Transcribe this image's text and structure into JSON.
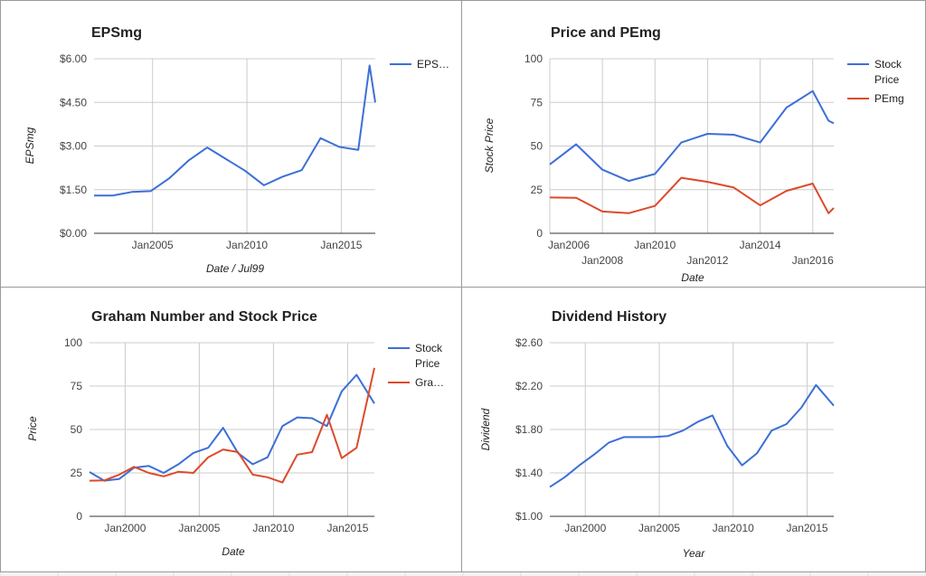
{
  "colors": {
    "blue": "#3d6fd6",
    "red": "#dc4a2c",
    "grid": "#cccccc",
    "axis": "#333333"
  },
  "chart_data": [
    {
      "type": "line",
      "title": "EPSmg",
      "xlabel": "Date / Jul99",
      "ylabel": "EPSmg",
      "ylim": [
        0,
        6
      ],
      "xlim": [
        2001.9,
        2016.8
      ],
      "yticks": [
        0,
        1.5,
        3,
        4.5,
        6
      ],
      "ytick_labels": [
        "$0.00",
        "$1.50",
        "$3.00",
        "$4.50",
        "$6.00"
      ],
      "xticks": [
        2005,
        2010,
        2015
      ],
      "xtick_labels": [
        "Jan2005",
        "Jan2010",
        "Jan2015"
      ],
      "legend": "right",
      "legend_labels": [
        "EPS…"
      ],
      "series": [
        {
          "name": "EPS…",
          "color": "blue",
          "points": [
            [
              2001.9,
              1.3
            ],
            [
              2002.9,
              1.3
            ],
            [
              2003.9,
              1.42
            ],
            [
              2004.9,
              1.45
            ],
            [
              2005.9,
              1.9
            ],
            [
              2006.9,
              2.5
            ],
            [
              2007.9,
              2.95
            ],
            [
              2008.9,
              2.55
            ],
            [
              2009.9,
              2.15
            ],
            [
              2010.9,
              1.65
            ],
            [
              2011.9,
              1.95
            ],
            [
              2012.9,
              2.17
            ],
            [
              2013.9,
              3.27
            ],
            [
              2014.9,
              2.97
            ],
            [
              2015.9,
              2.87
            ],
            [
              2016.5,
              5.77
            ],
            [
              2016.8,
              4.5
            ]
          ]
        }
      ]
    },
    {
      "type": "line",
      "title": "Price and PEmg",
      "xlabel": "Date",
      "ylabel": "Stock Price",
      "ylim": [
        0,
        100
      ],
      "xlim": [
        2006,
        2016.8
      ],
      "yticks": [
        0,
        25,
        50,
        75,
        100
      ],
      "ytick_labels": [
        "0",
        "25",
        "50",
        "75",
        "100"
      ],
      "xticks": [
        2006,
        2008,
        2010,
        2012,
        2014,
        2016
      ],
      "xtick_labels": [
        "Jan2006",
        "Jan2008",
        "Jan2010",
        "Jan2012",
        "Jan2014",
        "Jan2016"
      ],
      "xtick_staggered": true,
      "legend": "right",
      "legend_labels": [
        "Stock",
        "Price",
        "PEmg"
      ],
      "series": [
        {
          "name": "Stock Price",
          "color": "blue",
          "points": [
            [
              2006,
              39.5
            ],
            [
              2007,
              51
            ],
            [
              2008,
              36.5
            ],
            [
              2009,
              30
            ],
            [
              2010,
              34
            ],
            [
              2011,
              52
            ],
            [
              2012,
              57
            ],
            [
              2013,
              56.5
            ],
            [
              2014,
              52
            ],
            [
              2015,
              72
            ],
            [
              2016,
              81.5
            ],
            [
              2016.6,
              64.5
            ],
            [
              2016.8,
              63
            ]
          ]
        },
        {
          "name": "PEmg",
          "color": "red",
          "points": [
            [
              2006,
              20.5
            ],
            [
              2007,
              20.3
            ],
            [
              2008,
              12.5
            ],
            [
              2009,
              11.5
            ],
            [
              2010,
              15.7
            ],
            [
              2011,
              31.8
            ],
            [
              2012,
              29.5
            ],
            [
              2013,
              26.2
            ],
            [
              2014,
              16
            ],
            [
              2015,
              24.3
            ],
            [
              2016,
              28.5
            ],
            [
              2016.6,
              11.5
            ],
            [
              2016.8,
              14.5
            ]
          ]
        }
      ]
    },
    {
      "type": "line",
      "title": "Graham Number and Stock Price",
      "xlabel": "Date",
      "ylabel": "Price",
      "ylim": [
        0,
        100
      ],
      "xlim": [
        1997.6,
        2016.8
      ],
      "yticks": [
        0,
        25,
        50,
        75,
        100
      ],
      "ytick_labels": [
        "0",
        "25",
        "50",
        "75",
        "100"
      ],
      "xticks": [
        2000,
        2005,
        2010,
        2015
      ],
      "xtick_labels": [
        "Jan2000",
        "Jan2005",
        "Jan2010",
        "Jan2015"
      ],
      "legend": "right",
      "legend_labels": [
        "Stock",
        "Price",
        "Gra…"
      ],
      "series": [
        {
          "name": "Stock Price",
          "color": "blue",
          "points": [
            [
              1997.6,
              25.5
            ],
            [
              1998.6,
              20.5
            ],
            [
              1999.6,
              21.5
            ],
            [
              2000.6,
              28
            ],
            [
              2001.6,
              29
            ],
            [
              2002.6,
              25
            ],
            [
              2003.6,
              30
            ],
            [
              2004.6,
              36.5
            ],
            [
              2005.6,
              39.5
            ],
            [
              2006.6,
              51
            ],
            [
              2007.6,
              36.5
            ],
            [
              2008.6,
              30
            ],
            [
              2009.6,
              34
            ],
            [
              2010.6,
              52
            ],
            [
              2011.6,
              57
            ],
            [
              2012.6,
              56.5
            ],
            [
              2013.6,
              52
            ],
            [
              2014.6,
              72
            ],
            [
              2015.6,
              81.5
            ],
            [
              2016.8,
              65
            ]
          ]
        },
        {
          "name": "Gra…",
          "color": "red",
          "points": [
            [
              1997.6,
              20.5
            ],
            [
              1998.6,
              20.7
            ],
            [
              1999.6,
              24
            ],
            [
              2000.6,
              28.5
            ],
            [
              2001.6,
              25
            ],
            [
              2002.6,
              23
            ],
            [
              2003.6,
              25.7
            ],
            [
              2004.6,
              25
            ],
            [
              2005.6,
              34
            ],
            [
              2006.6,
              38.5
            ],
            [
              2007.6,
              37
            ],
            [
              2008.6,
              24
            ],
            [
              2009.6,
              22.5
            ],
            [
              2010.6,
              19.5
            ],
            [
              2011.6,
              35.5
            ],
            [
              2012.6,
              37
            ],
            [
              2013.6,
              58.5
            ],
            [
              2014.6,
              33.5
            ],
            [
              2015.6,
              39.5
            ],
            [
              2016.8,
              85.5
            ]
          ]
        }
      ]
    },
    {
      "type": "line",
      "title": "Dividend History",
      "xlabel": "Year",
      "ylabel": "Dividend",
      "ylim": [
        1.0,
        2.6
      ],
      "xlim": [
        1997.6,
        2016.8
      ],
      "yticks": [
        1.0,
        1.4,
        1.8,
        2.2,
        2.6
      ],
      "ytick_labels": [
        "$1.00",
        "$1.40",
        "$1.80",
        "$2.20",
        "$2.60"
      ],
      "xticks": [
        2000,
        2005,
        2010,
        2015
      ],
      "xtick_labels": [
        "Jan2000",
        "Jan2005",
        "Jan2010",
        "Jan2015"
      ],
      "legend": "none",
      "legend_labels": [],
      "series": [
        {
          "name": "",
          "color": "blue",
          "points": [
            [
              1997.6,
              1.27
            ],
            [
              1998.6,
              1.36
            ],
            [
              1999.6,
              1.47
            ],
            [
              2000.6,
              1.57
            ],
            [
              2001.6,
              1.68
            ],
            [
              2002.6,
              1.73
            ],
            [
              2003.6,
              1.73
            ],
            [
              2004.6,
              1.73
            ],
            [
              2005.6,
              1.74
            ],
            [
              2006.6,
              1.79
            ],
            [
              2007.6,
              1.87
            ],
            [
              2008.6,
              1.93
            ],
            [
              2009.6,
              1.65
            ],
            [
              2010.6,
              1.47
            ],
            [
              2011.6,
              1.58
            ],
            [
              2012.6,
              1.79
            ],
            [
              2013.6,
              1.85
            ],
            [
              2014.6,
              2.0
            ],
            [
              2015.6,
              2.21
            ],
            [
              2016.8,
              2.02
            ]
          ]
        }
      ]
    }
  ]
}
